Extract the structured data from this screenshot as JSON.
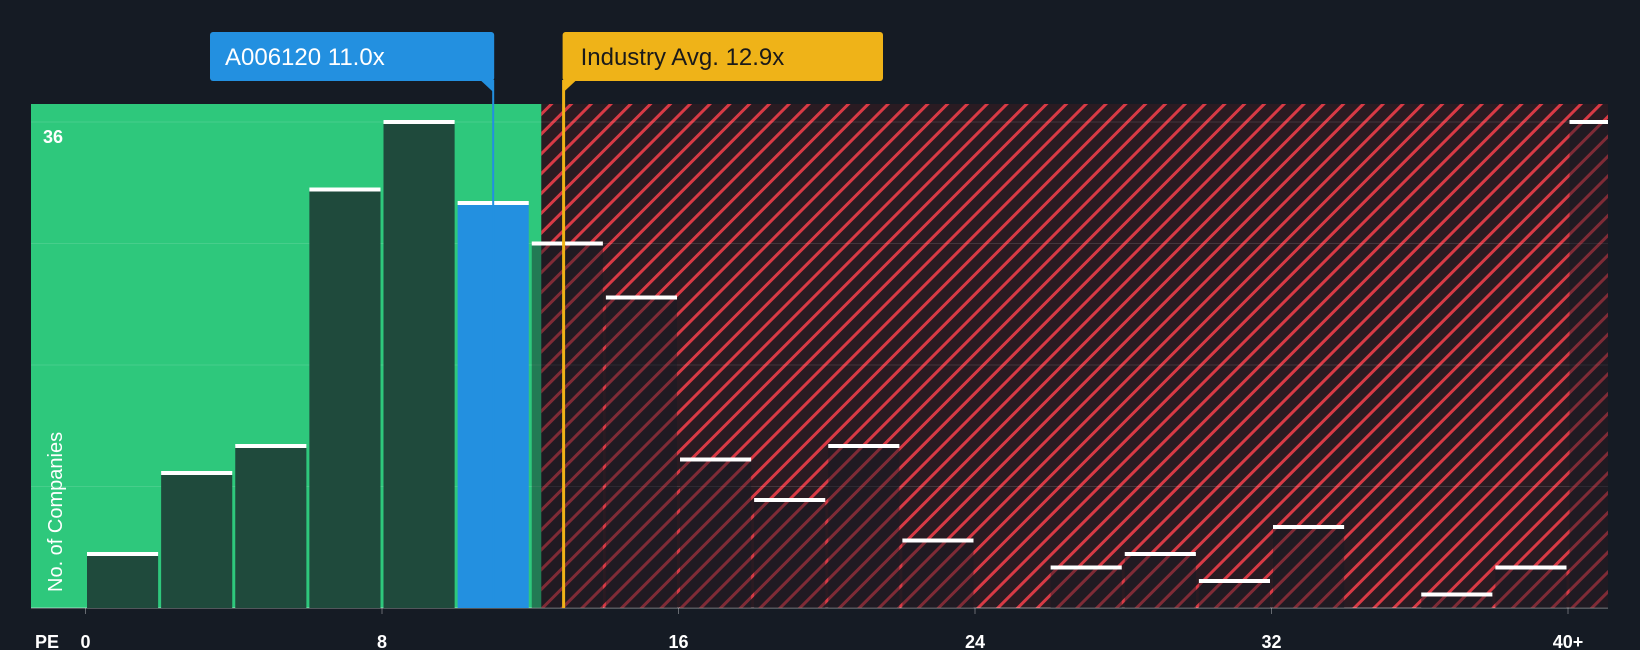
{
  "chart_data": {
    "type": "bar",
    "title": "",
    "xlabel": "PE",
    "ylabel": "No. of Companies",
    "ymax_label": "36",
    "ylim": [
      0,
      36
    ],
    "xlim": [
      0,
      41.5
    ],
    "x_ticks": [
      "0",
      "8",
      "16",
      "24",
      "32",
      "40+"
    ],
    "x_tick_values": [
      0,
      8,
      16,
      24,
      32,
      40
    ],
    "bin_width": 2,
    "bins": [
      {
        "x0": 0,
        "value": 4
      },
      {
        "x0": 2,
        "value": 10
      },
      {
        "x0": 4,
        "value": 12
      },
      {
        "x0": 6,
        "value": 31
      },
      {
        "x0": 8,
        "value": 36
      },
      {
        "x0": 10,
        "value": 30
      },
      {
        "x0": 12,
        "value": 27
      },
      {
        "x0": 14,
        "value": 23
      },
      {
        "x0": 16,
        "value": 11
      },
      {
        "x0": 18,
        "value": 8
      },
      {
        "x0": 20,
        "value": 12
      },
      {
        "x0": 22,
        "value": 5
      },
      {
        "x0": 24,
        "value": 0
      },
      {
        "x0": 26,
        "value": 3
      },
      {
        "x0": 28,
        "value": 4
      },
      {
        "x0": 30,
        "value": 2
      },
      {
        "x0": 32,
        "value": 6
      },
      {
        "x0": 34,
        "value": 0
      },
      {
        "x0": 36,
        "value": 1
      },
      {
        "x0": 38,
        "value": 3
      },
      {
        "x0": 40,
        "value": 36
      }
    ],
    "company": {
      "label": "A006120 11.0x",
      "pe": 11.0
    },
    "industry": {
      "label": "Industry Avg. 12.9x",
      "pe": 12.9
    },
    "fair_range_max": 12.3
  },
  "colors": {
    "background": "#151b24",
    "fair_zone": "#2ec87c",
    "bar_fill": "#1f4a3c",
    "highlight": "#2390e0",
    "industry": "#efb318",
    "over_bg": "#2a1b22",
    "hatch": "#d83a45",
    "bar_top": "#ffffff"
  }
}
